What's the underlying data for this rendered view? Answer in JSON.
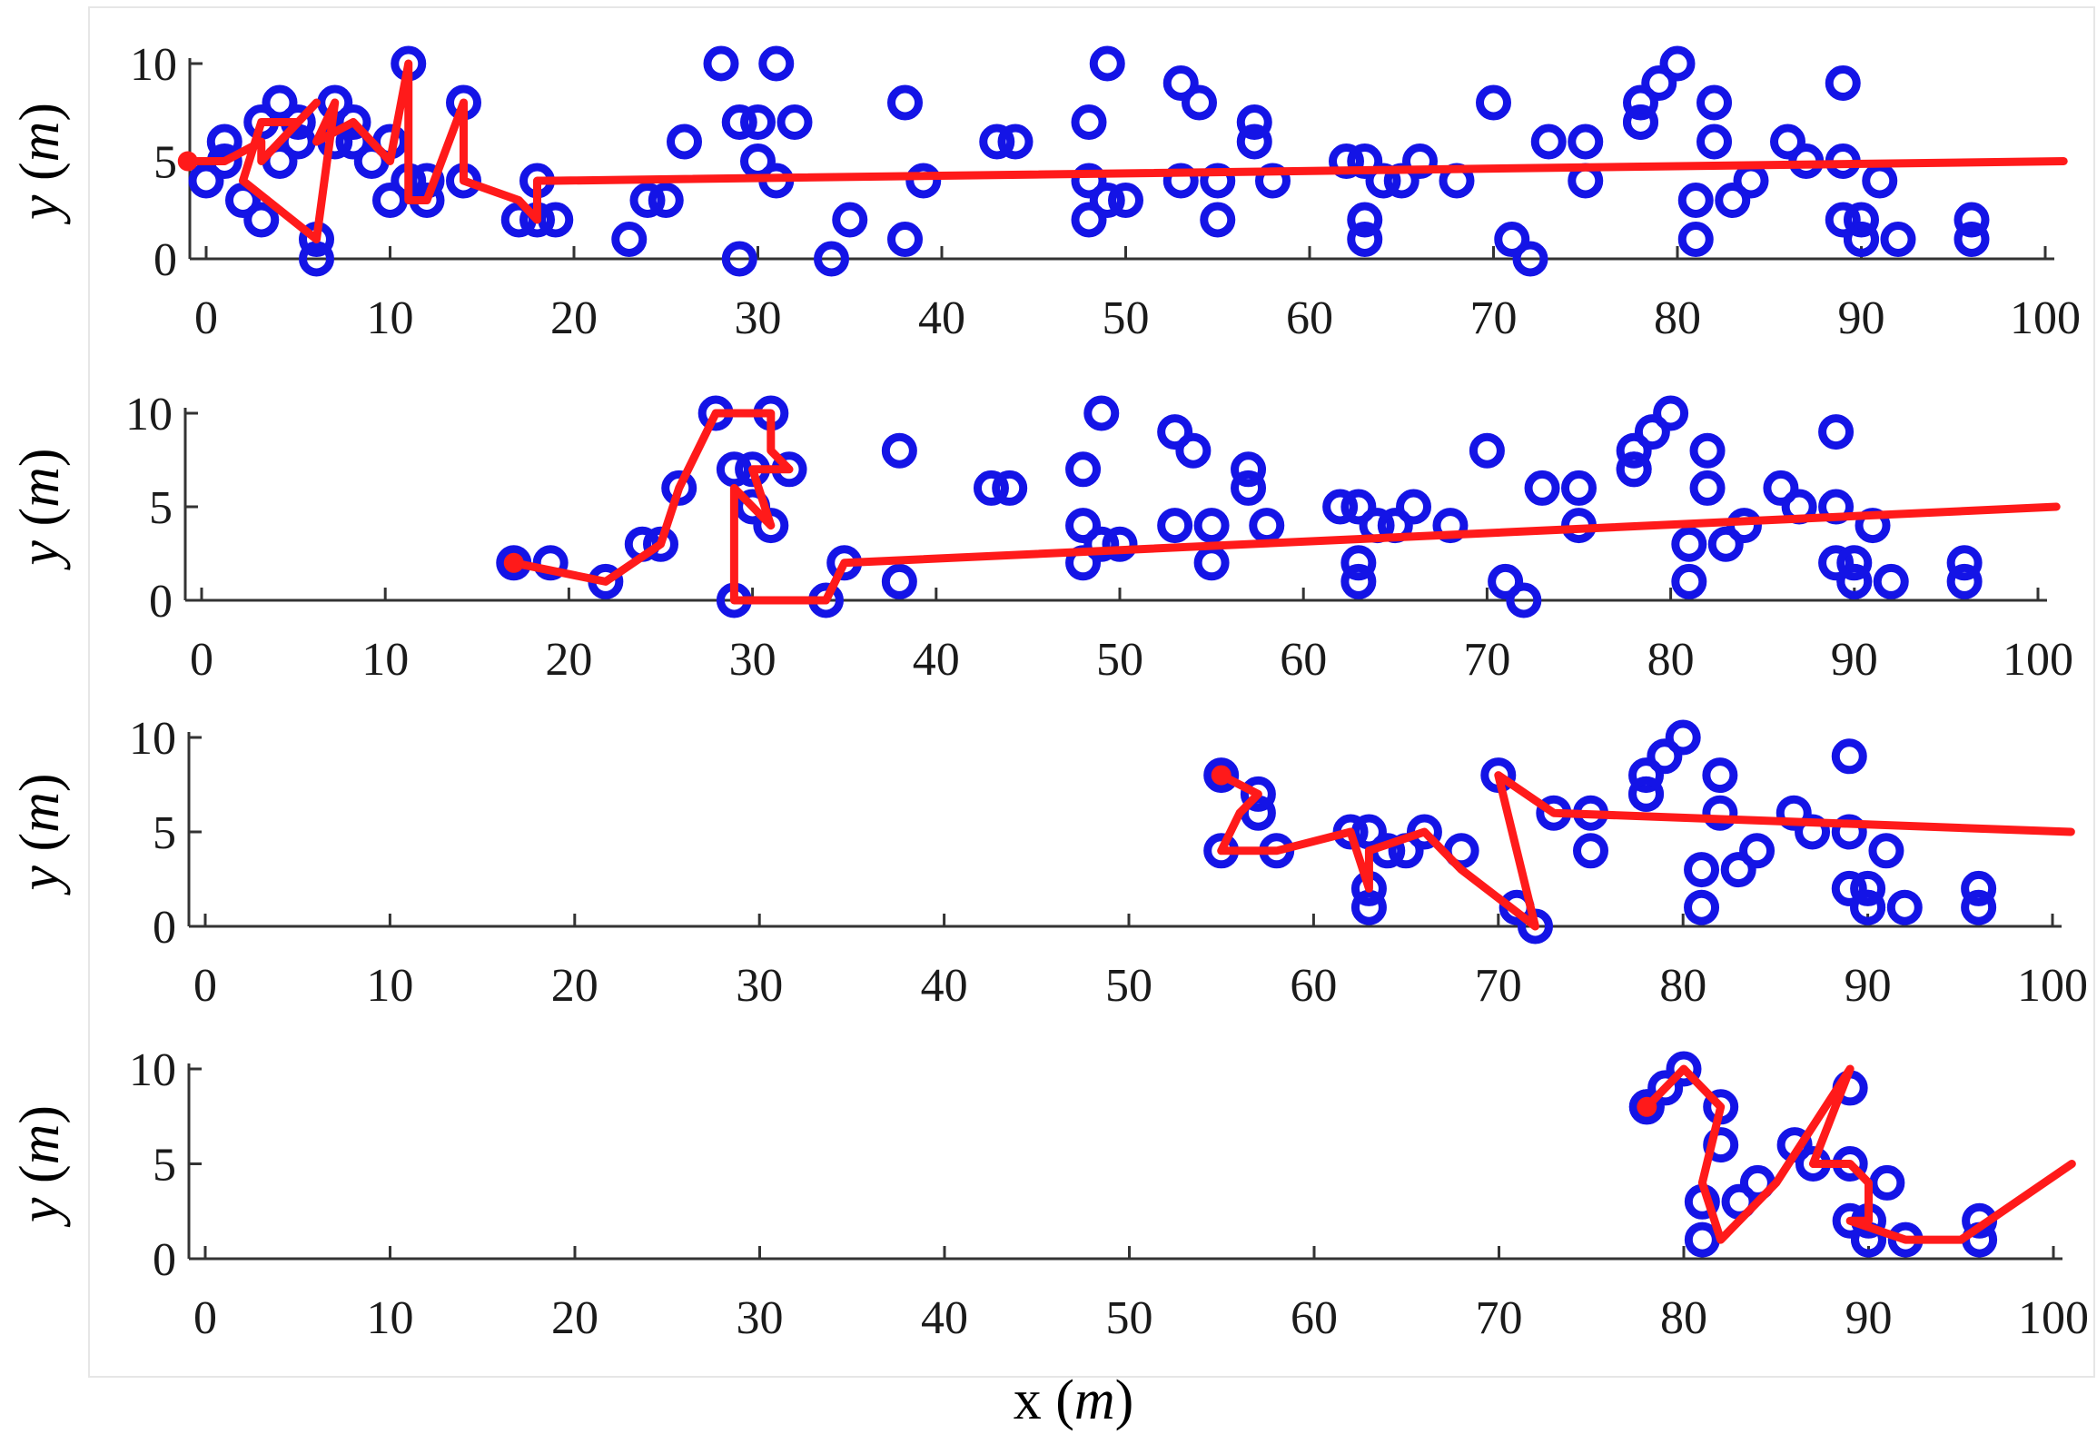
{
  "colors": {
    "points": "#1414e6",
    "path": "#ff1a1a",
    "axis": "#333333",
    "frame": "#e6e6e6"
  },
  "xlabel_text": "x",
  "xlabel_unit": "m",
  "ylabel_text": "y",
  "ylabel_unit": "m",
  "chart_data": [
    {
      "type": "scatter",
      "title": "",
      "xlabel": "x (m)",
      "ylabel": "y (m)",
      "xlim": [
        0,
        100
      ],
      "ylim": [
        0,
        10
      ],
      "xticks": [
        0,
        10,
        20,
        30,
        40,
        50,
        60,
        70,
        80,
        90,
        100
      ],
      "yticks": [
        0,
        5,
        10
      ],
      "series": [
        {
          "name": "targets",
          "kind": "circle-markers",
          "x": [
            0,
            1,
            1,
            2,
            3,
            3,
            4,
            4,
            5,
            5,
            6,
            6,
            7,
            7,
            8,
            8,
            9,
            10,
            10,
            11,
            11,
            12,
            12,
            14,
            14,
            17,
            18,
            18,
            19,
            23,
            24,
            25,
            26,
            28,
            29,
            29,
            30,
            30,
            31,
            31,
            32,
            34,
            35,
            38,
            38,
            39,
            43,
            44,
            48,
            48,
            48,
            49,
            49,
            50,
            53,
            53,
            54,
            55,
            55,
            57,
            57,
            58,
            62,
            63,
            63,
            63,
            64,
            65,
            66,
            68,
            70,
            71,
            72,
            73,
            75,
            75,
            78,
            78,
            78,
            79,
            80,
            81,
            81,
            82,
            82,
            83,
            84,
            86,
            87,
            89,
            89,
            89,
            90,
            90,
            90,
            91,
            92,
            96,
            96
          ],
          "y": [
            4,
            5,
            6,
            3,
            2,
            7,
            5,
            8,
            6,
            7,
            1,
            0,
            6,
            8,
            6,
            7,
            5,
            3,
            6,
            10,
            4,
            3,
            4,
            8,
            4,
            2,
            4,
            2,
            2,
            1,
            3,
            3,
            6,
            10,
            0,
            7,
            5,
            7,
            4,
            10,
            7,
            0,
            2,
            8,
            1,
            4,
            6,
            6,
            2,
            7,
            4,
            10,
            3,
            3,
            9,
            4,
            8,
            4,
            2,
            7,
            6,
            4,
            5,
            1,
            2,
            5,
            4,
            4,
            5,
            4,
            8,
            1,
            0,
            6,
            6,
            4,
            8,
            7,
            7,
            9,
            10,
            3,
            1,
            8,
            6,
            3,
            4,
            6,
            5,
            9,
            2,
            5,
            1,
            1,
            2,
            4,
            1,
            1,
            2
          ]
        },
        {
          "name": "trajectory",
          "kind": "line",
          "x": [
            -1,
            1,
            3,
            3,
            6,
            5,
            3,
            2,
            6,
            7,
            6,
            8,
            9,
            10,
            11,
            11,
            12,
            14,
            14,
            17,
            18,
            18,
            19,
            101
          ],
          "y": [
            5,
            5,
            6,
            5,
            8,
            7,
            7,
            4,
            1,
            8,
            6,
            7,
            6,
            5,
            10,
            3,
            3,
            8,
            4,
            3,
            2,
            4,
            4,
            5
          ]
        }
      ]
    },
    {
      "type": "scatter",
      "title": "",
      "xlabel": "x (m)",
      "ylabel": "y (m)",
      "xlim": [
        0,
        100
      ],
      "ylim": [
        0,
        10
      ],
      "xticks": [
        0,
        10,
        20,
        30,
        40,
        50,
        60,
        70,
        80,
        90,
        100
      ],
      "yticks": [
        0,
        5,
        10
      ],
      "series": [
        {
          "name": "targets",
          "kind": "circle-markers",
          "x": [
            17,
            19,
            22,
            24,
            25,
            26,
            28,
            29,
            29,
            30,
            30,
            31,
            31,
            32,
            34,
            35,
            38,
            38,
            43,
            44,
            48,
            48,
            48,
            49,
            49,
            50,
            53,
            53,
            54,
            55,
            55,
            57,
            57,
            58,
            62,
            63,
            63,
            63,
            64,
            65,
            66,
            68,
            70,
            71,
            72,
            73,
            75,
            75,
            78,
            78,
            78,
            79,
            80,
            81,
            81,
            82,
            82,
            83,
            84,
            86,
            87,
            89,
            89,
            89,
            90,
            90,
            90,
            91,
            92,
            96,
            96
          ],
          "y": [
            2,
            2,
            1,
            3,
            3,
            6,
            10,
            0,
            7,
            5,
            7,
            4,
            10,
            7,
            0,
            2,
            8,
            1,
            6,
            6,
            2,
            7,
            4,
            10,
            3,
            3,
            9,
            4,
            8,
            4,
            2,
            7,
            6,
            4,
            5,
            1,
            2,
            5,
            4,
            4,
            5,
            4,
            8,
            1,
            0,
            6,
            6,
            4,
            8,
            7,
            7,
            9,
            10,
            3,
            1,
            8,
            6,
            3,
            4,
            6,
            5,
            9,
            2,
            5,
            1,
            1,
            2,
            4,
            1,
            1,
            2
          ]
        },
        {
          "name": "trajectory",
          "kind": "line",
          "x": [
            17,
            22,
            25,
            26,
            28,
            31,
            31,
            32,
            30,
            31,
            29,
            29,
            34,
            35,
            101
          ],
          "y": [
            2,
            1,
            3,
            6,
            10,
            10,
            8,
            7,
            7,
            4,
            6,
            0,
            0,
            2,
            5
          ]
        }
      ]
    },
    {
      "type": "scatter",
      "title": "",
      "xlabel": "x (m)",
      "ylabel": "y (m)",
      "xlim": [
        0,
        100
      ],
      "ylim": [
        0,
        10
      ],
      "xticks": [
        0,
        10,
        20,
        30,
        40,
        50,
        60,
        70,
        80,
        90,
        100
      ],
      "yticks": [
        0,
        5,
        10
      ],
      "series": [
        {
          "name": "targets",
          "kind": "circle-markers",
          "x": [
            55,
            55,
            57,
            57,
            58,
            62,
            63,
            63,
            63,
            64,
            65,
            66,
            68,
            70,
            71,
            72,
            73,
            75,
            75,
            78,
            78,
            78,
            79,
            80,
            81,
            81,
            82,
            82,
            83,
            84,
            86,
            87,
            89,
            89,
            89,
            90,
            90,
            90,
            91,
            92,
            96,
            96
          ],
          "y": [
            8,
            4,
            7,
            6,
            4,
            5,
            1,
            2,
            5,
            4,
            4,
            5,
            4,
            8,
            1,
            0,
            6,
            6,
            4,
            8,
            7,
            7,
            9,
            10,
            3,
            1,
            8,
            6,
            3,
            4,
            6,
            5,
            9,
            2,
            5,
            1,
            1,
            2,
            4,
            1,
            1,
            2
          ]
        },
        {
          "name": "trajectory",
          "kind": "line",
          "x": [
            55,
            57,
            56,
            55,
            58,
            62,
            63,
            63,
            66,
            68,
            72,
            70,
            73,
            101
          ],
          "y": [
            8,
            7,
            6,
            4,
            4,
            5,
            2,
            4,
            5,
            3,
            0,
            8,
            6,
            5
          ]
        }
      ]
    },
    {
      "type": "scatter",
      "title": "",
      "xlabel": "x (m)",
      "ylabel": "y (m)",
      "xlim": [
        0,
        100
      ],
      "ylim": [
        0,
        10
      ],
      "xticks": [
        0,
        10,
        20,
        30,
        40,
        50,
        60,
        70,
        80,
        90,
        100
      ],
      "yticks": [
        0,
        5,
        10
      ],
      "series": [
        {
          "name": "targets",
          "kind": "circle-markers",
          "x": [
            78,
            78,
            79,
            80,
            81,
            81,
            82,
            82,
            83,
            84,
            86,
            87,
            89,
            89,
            89,
            90,
            90,
            90,
            91,
            92,
            96,
            96
          ],
          "y": [
            8,
            8,
            9,
            10,
            3,
            1,
            8,
            6,
            3,
            4,
            6,
            5,
            9,
            2,
            5,
            1,
            1,
            2,
            4,
            1,
            1,
            2
          ]
        },
        {
          "name": "trajectory",
          "kind": "line",
          "x": [
            78,
            80,
            81,
            82,
            81,
            82,
            85,
            89,
            87,
            89,
            90,
            90,
            89,
            92,
            95,
            101
          ],
          "y": [
            8,
            10,
            9,
            8,
            4,
            1,
            4,
            10,
            5,
            5,
            4,
            2,
            2,
            1,
            1,
            5
          ]
        }
      ]
    }
  ]
}
